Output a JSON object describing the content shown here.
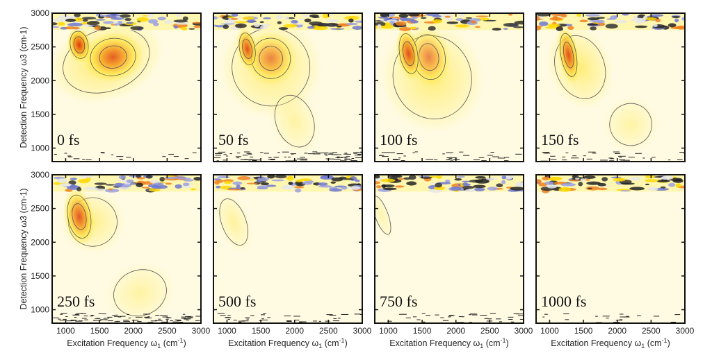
{
  "chart_data": {
    "type": "heatmap",
    "title": "",
    "xlabel": "Excitation Frequency ω1 (cm-1)",
    "xlabel_main": "Excitation Frequency ω",
    "xlabel_sub": "1",
    "xlabel_unit": " (cm",
    "xlabel_sup": "-1",
    "xlabel_close": ")",
    "ylabel": "Detection Frequency ω3 (cm-1)",
    "ylabel_main": "Detection Frequency ω",
    "ylabel_sub": "3",
    "xlim": [
      800,
      3000
    ],
    "ylim": [
      800,
      3000
    ],
    "xticks": [
      1000,
      1500,
      2000,
      2500,
      3000
    ],
    "yticks": [
      1000,
      1500,
      2000,
      2500,
      3000
    ],
    "colors": {
      "low": "#fffbe3",
      "mid": "#ffe84a",
      "high": "#f5961e",
      "max": "#dc3a0e",
      "negative": "#c8ccf0",
      "contour": "#555555"
    },
    "panels": [
      {
        "label": "0 fs",
        "peaks": [
          [
            1600,
            2300,
            550,
            380,
            0.35
          ],
          [
            1200,
            2530,
            110,
            170,
            1.0
          ],
          [
            1700,
            2350,
            280,
            230,
            0.8
          ]
        ]
      },
      {
        "label": "50 fs",
        "peaks": [
          [
            1650,
            2200,
            480,
            480,
            0.3
          ],
          [
            2000,
            1400,
            230,
            330,
            0.18
          ],
          [
            1650,
            2330,
            240,
            250,
            0.6
          ],
          [
            1300,
            2470,
            95,
            200,
            0.9
          ]
        ]
      },
      {
        "label": "100 fs",
        "peaks": [
          [
            1650,
            2050,
            480,
            520,
            0.3
          ],
          [
            1600,
            2350,
            200,
            280,
            0.6
          ],
          [
            1300,
            2400,
            110,
            250,
            0.9
          ]
        ]
      },
      {
        "label": "150 fs",
        "peaks": [
          [
            1450,
            2200,
            300,
            400,
            0.3
          ],
          [
            2200,
            1350,
            260,
            260,
            0.18
          ],
          [
            1280,
            2380,
            95,
            270,
            0.9
          ]
        ]
      },
      {
        "label": "250 fs",
        "peaks": [
          [
            1400,
            2300,
            300,
            300,
            0.25
          ],
          [
            2100,
            1250,
            330,
            280,
            0.18
          ],
          [
            1200,
            2380,
            140,
            270,
            0.85
          ]
        ]
      },
      {
        "label": "500 fs",
        "peaks": [
          [
            1100,
            2300,
            150,
            300,
            0.2
          ]
        ]
      },
      {
        "label": "750 fs",
        "peaks": [
          [
            900,
            2400,
            80,
            250,
            0.15
          ]
        ]
      },
      {
        "label": "1000 fs",
        "peaks": []
      }
    ]
  }
}
